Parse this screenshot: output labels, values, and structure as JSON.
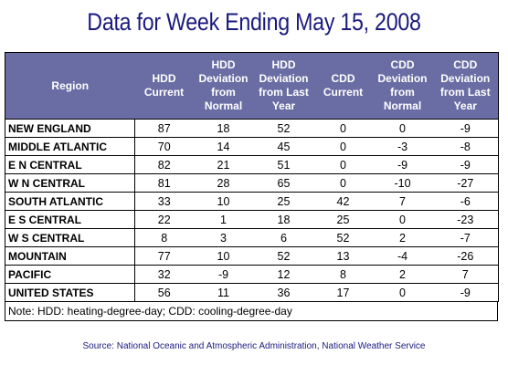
{
  "title": "Data for Week Ending May 15, 2008",
  "headers": [
    "Region",
    "HDD Current",
    "HDD Deviation from Normal",
    "HDD Deviation from Last Year",
    "CDD Current",
    "CDD Deviation from Normal",
    "CDD Deviation from Last Year"
  ],
  "rows": [
    [
      "NEW ENGLAND",
      "87",
      "18",
      "52",
      "0",
      "0",
      "-9"
    ],
    [
      "MIDDLE ATLANTIC",
      "70",
      "14",
      "45",
      "0",
      "-3",
      "-8"
    ],
    [
      "E N CENTRAL",
      "82",
      "21",
      "51",
      "0",
      "-9",
      "-9"
    ],
    [
      "W N CENTRAL",
      "81",
      "28",
      "65",
      "0",
      "-10",
      "-27"
    ],
    [
      "SOUTH ATLANTIC",
      "33",
      "10",
      "25",
      "42",
      "7",
      "-6"
    ],
    [
      "E S CENTRAL",
      "22",
      "1",
      "18",
      "25",
      "0",
      "-23"
    ],
    [
      "W S CENTRAL",
      "8",
      "3",
      "6",
      "52",
      "2",
      "-7"
    ],
    [
      "MOUNTAIN",
      "77",
      "10",
      "52",
      "13",
      "-4",
      "-26"
    ],
    [
      "PACIFIC",
      "32",
      "-9",
      "12",
      "8",
      "2",
      "7"
    ],
    [
      "UNITED STATES",
      "56",
      "11",
      "36",
      "17",
      "0",
      "-9"
    ]
  ],
  "note": "Note: HDD: heating-degree-day; CDD: cooling-degree-day",
  "source": "Source:  National Oceanic and Atmospheric Administration, National Weather Service",
  "colors": {
    "header_bg": "#6a6da3",
    "title": "#1a1a7e"
  }
}
